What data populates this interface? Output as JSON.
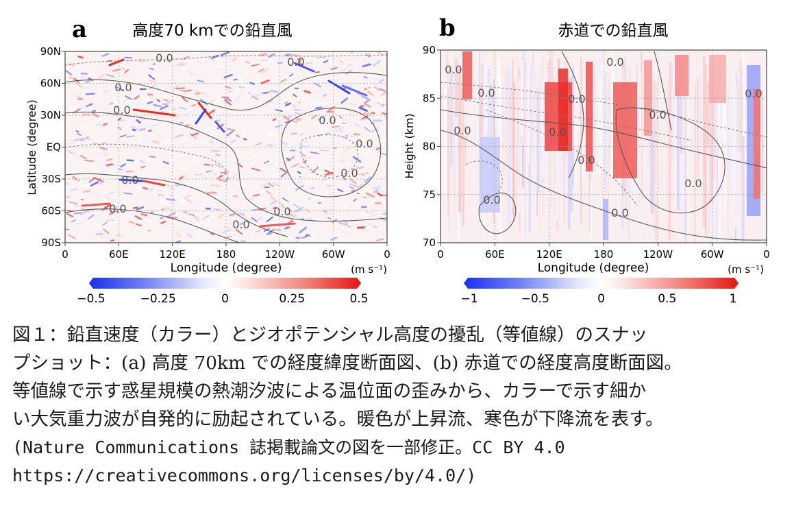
{
  "chart_data": [
    {
      "type": "heatmap",
      "panel": "a",
      "title": "高度70 kmでの鉛直風",
      "xlabel": "Longitude (degree)",
      "ylabel": "Latitude (degree)",
      "xticks": [
        "0",
        "60E",
        "120E",
        "180",
        "120W",
        "60W",
        "0"
      ],
      "yticks": [
        "90N",
        "60N",
        "30N",
        "EQ",
        "30S",
        "60S",
        "90S"
      ],
      "contour_labels": [
        "0.0",
        "0.0",
        "0.0",
        "0.0",
        "0.0",
        "0.0",
        "0.0",
        "0.0",
        "0.0",
        "0.0",
        "0.0"
      ],
      "colorbar": {
        "unit": "(m s⁻¹)",
        "ticks": [
          "−0.5",
          "−0.25",
          "0",
          "0.25",
          "0.5"
        ],
        "range": [
          -0.5,
          0.5
        ],
        "colors": {
          "low": "#1b2ff0",
          "mid": "#ffffff",
          "high": "#e8140f"
        }
      },
      "grid": true
    },
    {
      "type": "heatmap",
      "panel": "b",
      "title": "赤道での鉛直風",
      "xlabel": "Longitude (degree)",
      "ylabel": "Height (km)",
      "xticks": [
        "0",
        "60E",
        "120E",
        "180",
        "120W",
        "60W",
        "0"
      ],
      "yticks": [
        "90",
        "85",
        "80",
        "75",
        "70"
      ],
      "ylim": [
        70,
        90
      ],
      "contour_labels": [
        "0.0",
        "0.0",
        "0.0",
        "0.0",
        "0.0",
        "0.0",
        "0.0",
        "0.0",
        "0.0",
        "0.0",
        "0.0"
      ],
      "colorbar": {
        "unit": "(m s⁻¹)",
        "ticks": [
          "−1",
          "−0.5",
          "0",
          "0.5",
          "1"
        ],
        "range": [
          -1,
          1
        ],
        "colors": {
          "low": "#1b2ff0",
          "mid": "#ffffff",
          "high": "#e8140f"
        }
      },
      "grid": true
    }
  ],
  "caption": {
    "lines": [
      "図１：鉛直速度（カラー）とジオポテンシャル高度の擾乱（等値線）のスナッ",
      "プショット：(a) 高度 70km での経度緯度断面図、(b) 赤道での経度高度断面図。",
      "等値線で示す惑星規模の熱潮汐波による温位面の歪みから、カラーで示す細か",
      "い大気重力波が自発的に励起されている。暖色が上昇流、寒色が下降流を表す。",
      "(Nature Communications 誌掲載論文の図を一部修正。CC BY 4.0",
      "https://creativecommons.org/licenses/by/4.0/)"
    ]
  }
}
